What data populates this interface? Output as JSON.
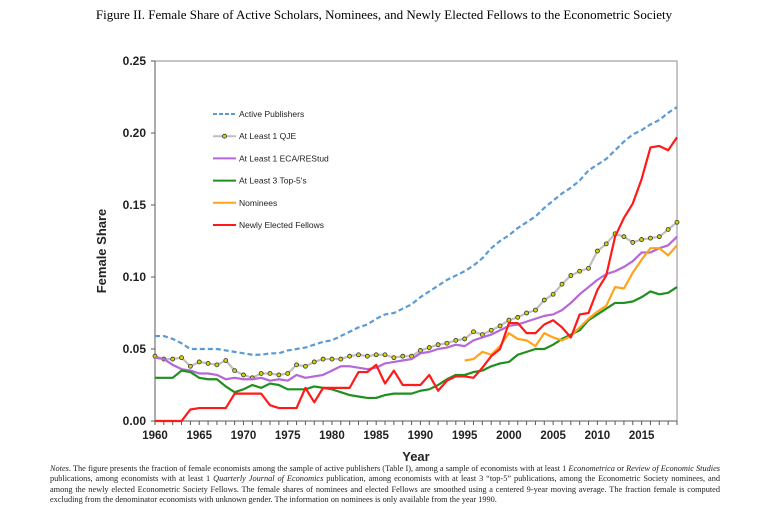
{
  "title": "Figure II. Female Share of Active Scholars, Nominees, and Newly Elected Fellows to the Econometric Society",
  "notes": [
    {
      "text": "Notes",
      "italic": true
    },
    {
      "text": ". The figure presents the fraction of female economists among the sample of active publishers (Table I), among a sample of economists with at least 1 ",
      "italic": false
    },
    {
      "text": "Econometrica",
      "italic": true
    },
    {
      "text": " or ",
      "italic": false
    },
    {
      "text": "Review of Economic Studies",
      "italic": true
    },
    {
      "text": " publications, among economists with at least 1 ",
      "italic": false
    },
    {
      "text": "Quarterly Journal of Economics",
      "italic": true
    },
    {
      "text": " publication, among economists with at least 3 “top-5” publications, among the Econometric Society nominees, and among the newly elected Econometric Society Fellows. The female shares of nominees and elected Fellows are smoothed using a centered 9-year moving average. The fraction female is computed excluding from the denominator economists with unknown gender. The information on nominees is only available from the year 1990.",
      "italic": false
    }
  ],
  "chart_data": {
    "type": "line",
    "title": "Figure II. Female Share of Active Scholars, Nominees, and Newly Elected Fellows to the Econometric Society",
    "xlabel": "Year",
    "ylabel": "Female Share",
    "xlim": [
      1960,
      2019
    ],
    "ylim": [
      0,
      0.25
    ],
    "xticks": [
      "1960",
      "1965",
      "1970",
      "1975",
      "1980",
      "1985",
      "1990",
      "1995",
      "2000",
      "2005",
      "2010",
      "2015"
    ],
    "yticks": [
      "0.00",
      "0.05",
      "0.10",
      "0.15",
      "0.20",
      "0.25"
    ],
    "grid": false,
    "legend": "top-left",
    "series": [
      {
        "name": "Active Publishers",
        "color": "#5b9bd5",
        "style": "dashed",
        "x0": 1960,
        "values": [
          0.059,
          0.059,
          0.057,
          0.054,
          0.05,
          0.05,
          0.05,
          0.05,
          0.049,
          0.048,
          0.047,
          0.046,
          0.046,
          0.047,
          0.047,
          0.049,
          0.05,
          0.051,
          0.053,
          0.055,
          0.056,
          0.059,
          0.062,
          0.065,
          0.067,
          0.071,
          0.074,
          0.075,
          0.078,
          0.081,
          0.086,
          0.09,
          0.094,
          0.098,
          0.101,
          0.104,
          0.108,
          0.113,
          0.12,
          0.125,
          0.129,
          0.134,
          0.138,
          0.142,
          0.148,
          0.153,
          0.158,
          0.162,
          0.167,
          0.174,
          0.178,
          0.182,
          0.188,
          0.194,
          0.199,
          0.202,
          0.206,
          0.209,
          0.214,
          0.218
        ]
      },
      {
        "name": "At Least 1 QJE",
        "color": "#bfbfbf",
        "style": "markers",
        "marker_color": "#d4d400",
        "x0": 1960,
        "values": [
          0.045,
          0.043,
          0.043,
          0.044,
          0.038,
          0.041,
          0.04,
          0.039,
          0.042,
          0.035,
          0.032,
          0.03,
          0.033,
          0.033,
          0.032,
          0.033,
          0.039,
          0.038,
          0.041,
          0.043,
          0.043,
          0.043,
          0.045,
          0.046,
          0.045,
          0.046,
          0.046,
          0.044,
          0.045,
          0.045,
          0.049,
          0.051,
          0.053,
          0.054,
          0.056,
          0.057,
          0.062,
          0.06,
          0.063,
          0.066,
          0.07,
          0.072,
          0.075,
          0.077,
          0.084,
          0.088,
          0.095,
          0.101,
          0.104,
          0.106,
          0.118,
          0.123,
          0.13,
          0.128,
          0.124,
          0.126,
          0.127,
          0.128,
          0.133,
          0.138
        ]
      },
      {
        "name": "At Least 1 ECA/REStud",
        "color": "#b667d8",
        "style": "solid",
        "x0": 1960,
        "values": [
          0.044,
          0.043,
          0.039,
          0.036,
          0.035,
          0.033,
          0.033,
          0.032,
          0.029,
          0.03,
          0.029,
          0.029,
          0.03,
          0.028,
          0.029,
          0.028,
          0.032,
          0.03,
          0.031,
          0.032,
          0.035,
          0.038,
          0.038,
          0.037,
          0.036,
          0.037,
          0.04,
          0.041,
          0.042,
          0.043,
          0.047,
          0.048,
          0.05,
          0.051,
          0.053,
          0.052,
          0.056,
          0.058,
          0.06,
          0.063,
          0.066,
          0.067,
          0.069,
          0.071,
          0.073,
          0.074,
          0.077,
          0.082,
          0.088,
          0.093,
          0.098,
          0.102,
          0.104,
          0.107,
          0.111,
          0.117,
          0.117,
          0.12,
          0.122,
          0.128
        ]
      },
      {
        "name": "At Least 3 Top-5's",
        "color": "#1f8f1f",
        "style": "solid",
        "x0": 1960,
        "values": [
          0.03,
          0.03,
          0.03,
          0.035,
          0.034,
          0.03,
          0.029,
          0.029,
          0.024,
          0.02,
          0.022,
          0.025,
          0.023,
          0.026,
          0.025,
          0.022,
          0.022,
          0.022,
          0.024,
          0.023,
          0.022,
          0.02,
          0.018,
          0.017,
          0.016,
          0.016,
          0.018,
          0.019,
          0.019,
          0.019,
          0.021,
          0.022,
          0.025,
          0.029,
          0.032,
          0.032,
          0.034,
          0.035,
          0.038,
          0.04,
          0.041,
          0.046,
          0.048,
          0.05,
          0.05,
          0.053,
          0.057,
          0.06,
          0.063,
          0.07,
          0.074,
          0.078,
          0.082,
          0.082,
          0.083,
          0.086,
          0.09,
          0.088,
          0.089,
          0.093
        ]
      },
      {
        "name": "Nominees",
        "color": "#ffa31a",
        "style": "solid",
        "x0": 1995,
        "values": [
          0.042,
          0.043,
          0.048,
          0.046,
          0.052,
          0.061,
          0.057,
          0.056,
          0.052,
          0.061,
          0.058,
          0.056,
          0.059,
          0.065,
          0.071,
          0.076,
          0.08,
          0.093,
          0.092,
          0.103,
          0.112,
          0.12,
          0.12,
          0.115,
          0.122
        ]
      },
      {
        "name": "Newly Elected Fellows",
        "color": "#ff1a1a",
        "style": "solid",
        "x0": 1960,
        "values": [
          0,
          0,
          0,
          0,
          0.008,
          0.009,
          0.009,
          0.009,
          0.009,
          0.019,
          0.019,
          0.019,
          0.019,
          0.011,
          0.009,
          0.009,
          0.009,
          0.023,
          0.013,
          0.023,
          0.023,
          0.023,
          0.023,
          0.034,
          0.034,
          0.039,
          0.026,
          0.035,
          0.025,
          0.025,
          0.025,
          0.032,
          0.021,
          0.028,
          0.031,
          0.031,
          0.03,
          0.037,
          0.045,
          0.05,
          0.068,
          0.068,
          0.061,
          0.061,
          0.067,
          0.07,
          0.065,
          0.058,
          0.074,
          0.075,
          0.091,
          0.101,
          0.128,
          0.141,
          0.151,
          0.168,
          0.19,
          0.191,
          0.188,
          0.197
        ]
      }
    ]
  }
}
